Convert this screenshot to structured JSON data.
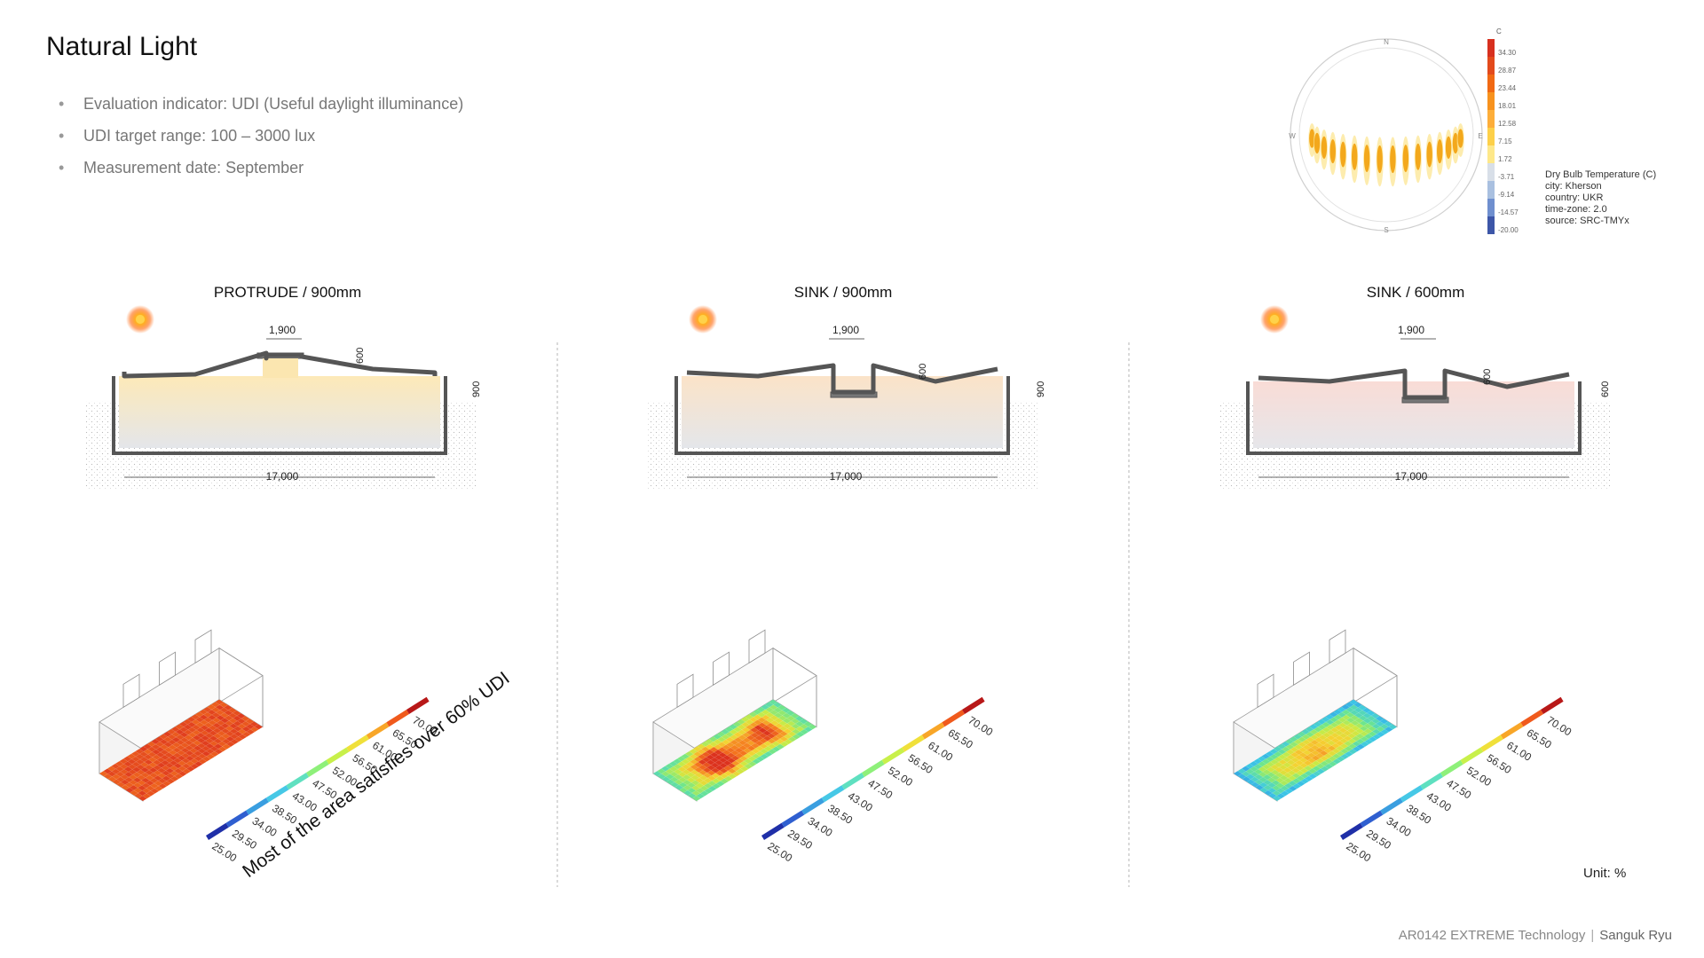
{
  "title": "Natural Light",
  "bullets": [
    "Evaluation indicator: UDI (Useful daylight illuminance)",
    "UDI target range: 100 – 3000 lux",
    "Measurement date: September"
  ],
  "sun_chart": {
    "scale_unit": "C",
    "scale_values": [
      "34.30",
      "28.87",
      "23.44",
      "18.01",
      "12.58",
      "7.15",
      "1.72",
      "-3.71",
      "-9.14",
      "-14.57",
      "-20.00"
    ],
    "scale_colors": [
      "#d7301f",
      "#e34a1c",
      "#f16913",
      "#f7921e",
      "#fdae3a",
      "#fdd049",
      "#fee88a",
      "#d8dfe8",
      "#a9c0e0",
      "#6f8fcf",
      "#3d56a8"
    ],
    "compass": {
      "n": "N",
      "e": "E",
      "s": "S",
      "w": "W"
    },
    "info": [
      "Dry Bulb Temperature (C)",
      "city: Kherson",
      "country: UKR",
      "time-zone: 2.0",
      "source: SRC-TMYx"
    ]
  },
  "sections": [
    {
      "title": "PROTRUDE / 900mm",
      "dim_top": "1,900",
      "dim_v": "600",
      "dim_h": "900",
      "dim_width": "17,000",
      "type": "protrude",
      "grid_profile": "protrude"
    },
    {
      "title": "SINK / 900mm",
      "dim_top": "1,900",
      "dim_v": "600",
      "dim_h": "900",
      "dim_width": "17,000",
      "type": "sink900",
      "grid_profile": "sink900"
    },
    {
      "title": "SINK / 600mm",
      "dim_top": "1,900",
      "dim_v": "600",
      "dim_h": "600",
      "dim_width": "17,000",
      "type": "sink600",
      "grid_profile": "sink600"
    }
  ],
  "legend": {
    "values": [
      "25.00",
      "29.50",
      "34.00",
      "38.50",
      "43.00",
      "47.50",
      "52.00",
      "56.50",
      "61.00",
      "65.50",
      "70.00"
    ],
    "colors": [
      "#1f2fa8",
      "#2f5fd0",
      "#3a9ee0",
      "#46c8e6",
      "#5fe0c0",
      "#8ef07a",
      "#c8f04a",
      "#f0e03a",
      "#f8a628",
      "#f05a1c",
      "#b81818"
    ]
  },
  "annotation": "Most of the area satisfies over 60% UDI",
  "unit_label": "Unit: %",
  "footer": {
    "course": "AR0142 EXTREME Technology",
    "separator": "|",
    "author": "Sanguk Ryu"
  }
}
